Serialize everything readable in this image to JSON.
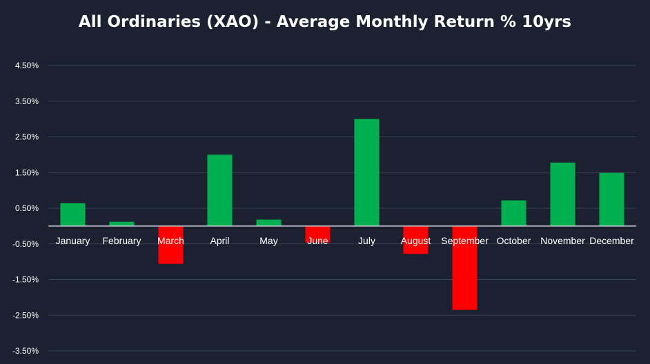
{
  "chart_data": {
    "type": "bar",
    "title": "All Ordinaries (XAO) - Average Monthly Return % 10yrs",
    "xlabel": "",
    "ylabel": "",
    "categories": [
      "January",
      "February",
      "March",
      "April",
      "May",
      "June",
      "July",
      "August",
      "September",
      "October",
      "November",
      "December"
    ],
    "values": [
      0.64,
      0.12,
      -1.06,
      2.0,
      0.18,
      -0.46,
      3.0,
      -0.78,
      -2.35,
      0.72,
      1.78,
      1.49
    ],
    "yticks": [
      4.5,
      3.5,
      2.5,
      1.5,
      0.5,
      -0.5,
      -1.5,
      -2.5,
      -3.5
    ],
    "ytick_labels": [
      "4.50%",
      "3.50%",
      "2.50%",
      "1.50%",
      "0.50%",
      "-0.50%",
      "-1.50%",
      "-2.50%",
      "-3.50%"
    ],
    "ylim": [
      -3.5,
      4.5
    ],
    "grid": true,
    "legend": "none",
    "colors": {
      "background": "#1b2130",
      "positive": "#00b050",
      "negative": "#ff0000",
      "grid": "#3a4150",
      "zero_line": "#c8ccd4",
      "text": "#ffffff"
    }
  }
}
